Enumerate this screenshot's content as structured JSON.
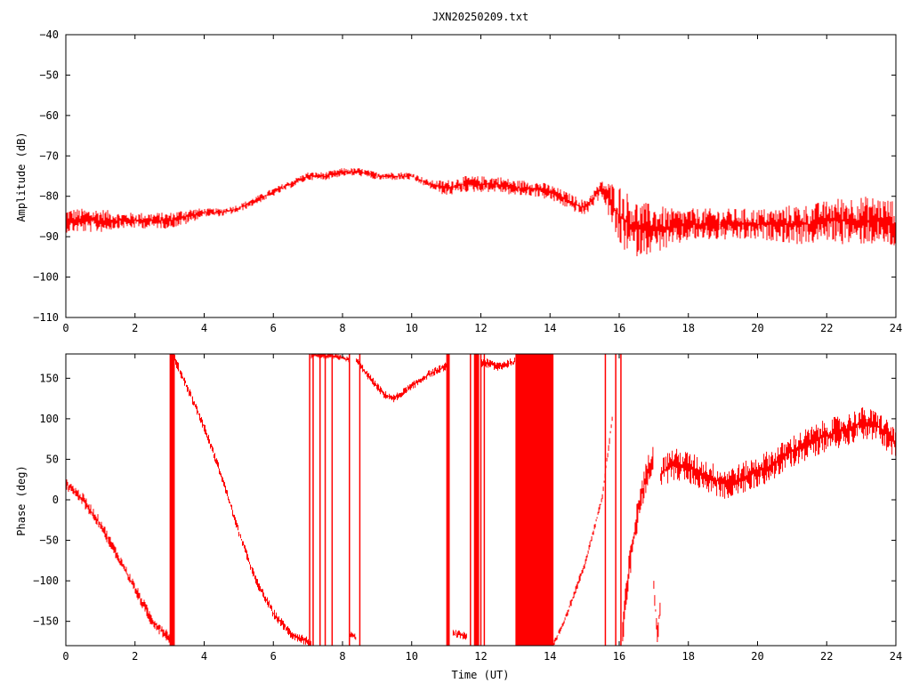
{
  "chart_data": [
    {
      "type": "line",
      "title": "JXN20250209.txt",
      "xlabel": "",
      "ylabel": "Amplitude (dB)",
      "xlim": [
        0,
        24
      ],
      "ylim": [
        -110,
        -40
      ],
      "xticks": [
        "0",
        "2",
        "4",
        "6",
        "8",
        "10",
        "12",
        "14",
        "16",
        "18",
        "20",
        "22",
        "24"
      ],
      "yticks": [
        "-40",
        "-50",
        "-60",
        "-70",
        "-80",
        "-90",
        "-100",
        "-110"
      ],
      "grid": false,
      "legend": "none",
      "color": "#ff0000",
      "series": [
        {
          "x": [
            0,
            0.5,
            1,
            1.5,
            2,
            2.5,
            3,
            3.5,
            4,
            4.5,
            5,
            5.5,
            6,
            6.5,
            7,
            7.5,
            8,
            8.5,
            9,
            9.5,
            10,
            10.5,
            11,
            11.5,
            12,
            12.5,
            13,
            13.5,
            14,
            14.5,
            15,
            15.5,
            16,
            16.5,
            17,
            17.5,
            18,
            18.5,
            19,
            19.5,
            20,
            20.5,
            21,
            21.5,
            22,
            22.5,
            23,
            23.5,
            24
          ],
          "y": [
            -86,
            -86,
            -86,
            -86,
            -86,
            -86,
            -86,
            -85,
            -84,
            -84,
            -83,
            -81,
            -79,
            -77,
            -75,
            -75,
            -74,
            -74,
            -75,
            -75,
            -75,
            -77,
            -78,
            -77,
            -77,
            -77,
            -78,
            -78,
            -79,
            -81,
            -83,
            -78,
            -85,
            -88,
            -88,
            -88,
            -87,
            -87,
            -87,
            -87,
            -87,
            -87,
            -87,
            -87,
            -86,
            -86,
            -86,
            -86,
            -87
          ],
          "noise": [
            3,
            3,
            3,
            2,
            2,
            2,
            2,
            2,
            1,
            1,
            1,
            1,
            1,
            1,
            1,
            1,
            1,
            1,
            1,
            1,
            1,
            1,
            2,
            2,
            2,
            2,
            2,
            2,
            2,
            2,
            2,
            2,
            8,
            7,
            6,
            5,
            4,
            4,
            4,
            4,
            4,
            4,
            5,
            5,
            5,
            6,
            6,
            6,
            6
          ]
        }
      ]
    },
    {
      "type": "line",
      "title": "",
      "xlabel": "Time (UT)",
      "ylabel": "Phase (deg)",
      "xlim": [
        0,
        24
      ],
      "ylim": [
        -180,
        180
      ],
      "xticks": [
        "0",
        "2",
        "4",
        "6",
        "8",
        "10",
        "12",
        "14",
        "16",
        "18",
        "20",
        "22",
        "24"
      ],
      "yticks": [
        "150",
        "100",
        "50",
        "0",
        "-50",
        "-100",
        "-150"
      ],
      "grid": false,
      "legend": "none",
      "color": "#ff0000",
      "series": [
        {
          "x": [
            0,
            0.5,
            1,
            1.5,
            2,
            2.5,
            3,
            3.1
          ],
          "y": [
            20,
            0,
            -30,
            -70,
            -110,
            -150,
            -170,
            -178
          ],
          "noise": 8
        },
        {
          "x": [
            3.1,
            3.5,
            4,
            4.5,
            5,
            5.5,
            6,
            6.5,
            7,
            7.1
          ],
          "y": [
            178,
            140,
            90,
            30,
            -40,
            -100,
            -140,
            -165,
            -175,
            -178
          ],
          "noise": 6
        },
        {
          "x": [
            7.1,
            7.5,
            8,
            8.2
          ],
          "y": [
            178,
            178,
            175,
            172
          ],
          "noise": 4
        },
        {
          "x": [
            8.2,
            8.4
          ],
          "y": [
            -165,
            -170
          ],
          "noise": 4
        },
        {
          "x": [
            8.4,
            8.8,
            9.2,
            9.5,
            10,
            10.5,
            11
          ],
          "y": [
            172,
            150,
            130,
            125,
            140,
            155,
            165
          ],
          "noise": 5
        },
        {
          "x": [
            11.2,
            11.6
          ],
          "y": [
            -165,
            -168
          ],
          "noise": 5
        },
        {
          "x": [
            12,
            12.5,
            13
          ],
          "y": [
            170,
            165,
            170
          ],
          "noise": 6
        },
        {
          "x": [
            14.1,
            14.5,
            15,
            15.5,
            15.8
          ],
          "y": [
            -180,
            -140,
            -80,
            0,
            100
          ],
          "noise": 5
        },
        {
          "x": [
            16.1,
            16.3,
            16.6,
            17
          ],
          "y": [
            -160,
            -80,
            0,
            60
          ],
          "noise": 20
        },
        {
          "x": [
            17,
            17.1,
            17.2
          ],
          "y": [
            -100,
            -170,
            -120
          ],
          "noise": 15
        },
        {
          "x": [
            17.2,
            17.5,
            18,
            18.5,
            19,
            19.5,
            20,
            20.5,
            21,
            21.5,
            22,
            22.5,
            23,
            23.5,
            24
          ],
          "y": [
            30,
            45,
            40,
            30,
            20,
            25,
            35,
            45,
            60,
            70,
            80,
            85,
            95,
            90,
            70
          ],
          "noise": 20
        }
      ],
      "bands": [
        {
          "x0": 3.0,
          "x1": 3.15
        },
        {
          "x0": 11.0,
          "x1": 11.1
        },
        {
          "x0": 11.8,
          "x1": 11.95
        },
        {
          "x0": 13.0,
          "x1": 14.1
        }
      ],
      "jumps": [
        7.05,
        7.15,
        7.35,
        7.5,
        7.7,
        8.2,
        8.5,
        11.7,
        12.0,
        12.1,
        15.6,
        15.9,
        16.05
      ]
    }
  ]
}
